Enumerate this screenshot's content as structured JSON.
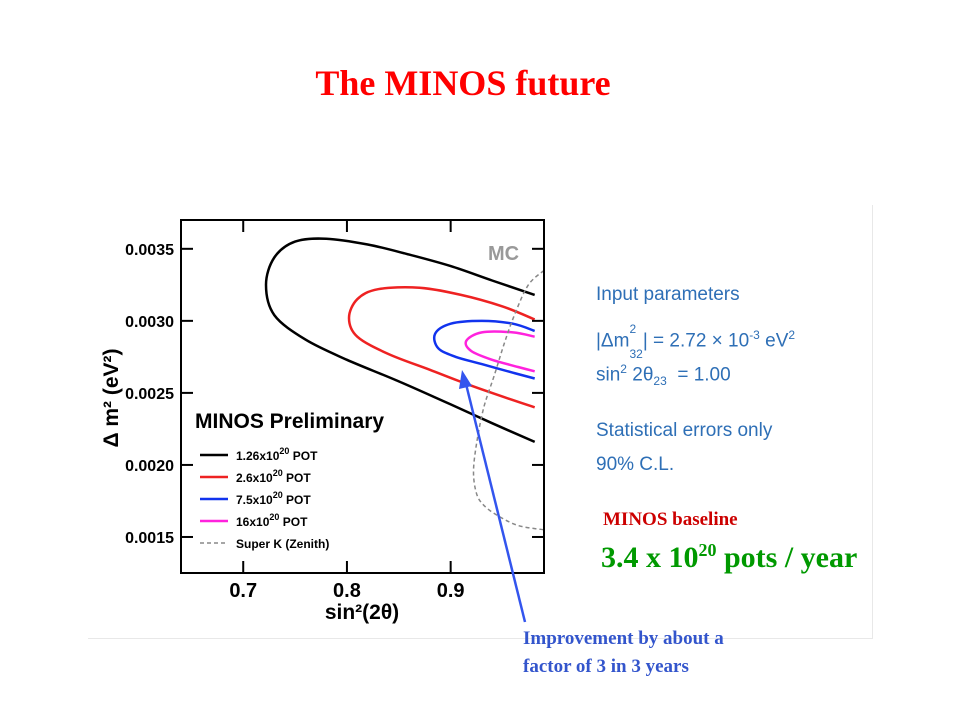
{
  "page": {
    "title": "The MINOS future"
  },
  "input_parameters": {
    "heading": "Input parameters",
    "dm2_lhs": "|Δm",
    "dm2_sup": "2",
    "dm2_sub": "32",
    "dm2_rhs": "| = 2.72 × 10",
    "dm2_exp": "-3",
    "dm2_unit": " eV",
    "dm2_unit_sup": "2",
    "sin_lhs": "sin",
    "sin_sup": "2",
    "sin_mid": " 2θ",
    "sin_sub": "23",
    "sin_rhs": "  = 1.00",
    "note1": "Statistical errors only",
    "note2": "90% C.L."
  },
  "baseline": {
    "label": "MINOS baseline",
    "value_prefix": "3.4 x 10",
    "value_exp": "20",
    "value_suffix": " pots / year"
  },
  "annotation": {
    "line1": "Improvement by about a",
    "line2": "factor of 3 in 3 years"
  },
  "colors": {
    "title": "#ff0000",
    "params_text": "#2e6fb6",
    "baseline_label": "#cc0000",
    "baseline_value": "#009900",
    "annotation": "#3355cc",
    "arrow": "#3355ee"
  },
  "chart_data": {
    "type": "line",
    "title": "",
    "tag": "MC",
    "legend_title": "MINOS Preliminary",
    "legend_position": "bottom-left",
    "xlabel": "sin²(2θ)",
    "ylabel": "Δ m² (eV²)",
    "xlim": [
      0.64,
      0.99
    ],
    "ylim": [
      0.00125,
      0.0037
    ],
    "x_ticks": [
      0.7,
      0.8,
      0.9
    ],
    "x_tick_labels": [
      "0.7",
      "0.8",
      "0.9"
    ],
    "y_ticks": [
      0.0015,
      0.002,
      0.0025,
      0.003,
      0.0035
    ],
    "y_tick_labels": [
      "0.0015",
      "0.0020",
      "0.0025",
      "0.0030",
      "0.0035"
    ],
    "series": [
      {
        "name": "1.26x10²⁰ POT",
        "color": "#000000",
        "dash": "solid",
        "x": [
          0.981,
          0.94,
          0.9,
          0.86,
          0.82,
          0.78,
          0.75,
          0.73,
          0.722,
          0.73,
          0.76,
          0.8,
          0.85,
          0.9,
          0.94,
          0.981
        ],
        "y": [
          0.00318,
          0.00328,
          0.00338,
          0.00346,
          0.00353,
          0.00357,
          0.00355,
          0.00344,
          0.00325,
          0.00304,
          0.00287,
          0.00273,
          0.00258,
          0.00242,
          0.00229,
          0.00216
        ]
      },
      {
        "name": "2.6x10²⁰ POT",
        "color": "#ee2222",
        "dash": "solid",
        "x": [
          0.981,
          0.95,
          0.91,
          0.87,
          0.83,
          0.81,
          0.802,
          0.81,
          0.84,
          0.88,
          0.92,
          0.96,
          0.981
        ],
        "y": [
          0.00301,
          0.0031,
          0.00318,
          0.00323,
          0.00322,
          0.00315,
          0.00302,
          0.00289,
          0.00277,
          0.00266,
          0.00255,
          0.00245,
          0.0024
        ]
      },
      {
        "name": "7.5x10²⁰ POT",
        "color": "#1133ee",
        "dash": "solid",
        "x": [
          0.981,
          0.96,
          0.93,
          0.9,
          0.885,
          0.888,
          0.905,
          0.93,
          0.96,
          0.981
        ],
        "y": [
          0.00293,
          0.00298,
          0.003,
          0.00298,
          0.00291,
          0.00281,
          0.00275,
          0.0027,
          0.00264,
          0.0026
        ]
      },
      {
        "name": "16x10²⁰ POT",
        "color": "#ff22dd",
        "dash": "solid",
        "x": [
          0.981,
          0.96,
          0.93,
          0.915,
          0.92,
          0.94,
          0.965,
          0.981
        ],
        "y": [
          0.00289,
          0.00292,
          0.00292,
          0.00286,
          0.00279,
          0.00273,
          0.00268,
          0.00265
        ]
      },
      {
        "name": "Super K (Zenith)",
        "color": "#888888",
        "dash": "dashed",
        "x": [
          0.99,
          0.975,
          0.962,
          0.952,
          0.942,
          0.932,
          0.925,
          0.922,
          0.925,
          0.932,
          0.945,
          0.965,
          0.99
        ],
        "y": [
          0.00335,
          0.00325,
          0.00305,
          0.00285,
          0.00262,
          0.0024,
          0.00215,
          0.00195,
          0.0018,
          0.00172,
          0.00165,
          0.00158,
          0.00155
        ]
      }
    ],
    "legend": [
      {
        "prefix": "1.26x10",
        "exp": "20",
        "suffix": " POT"
      },
      {
        "prefix": "2.6x10",
        "exp": "20",
        "suffix": " POT"
      },
      {
        "prefix": "7.5x10",
        "exp": "20",
        "suffix": " POT"
      },
      {
        "prefix": "16x10",
        "exp": "20",
        "suffix": " POT"
      },
      {
        "prefix": "Super K (Zenith)",
        "exp": "",
        "suffix": ""
      }
    ]
  }
}
